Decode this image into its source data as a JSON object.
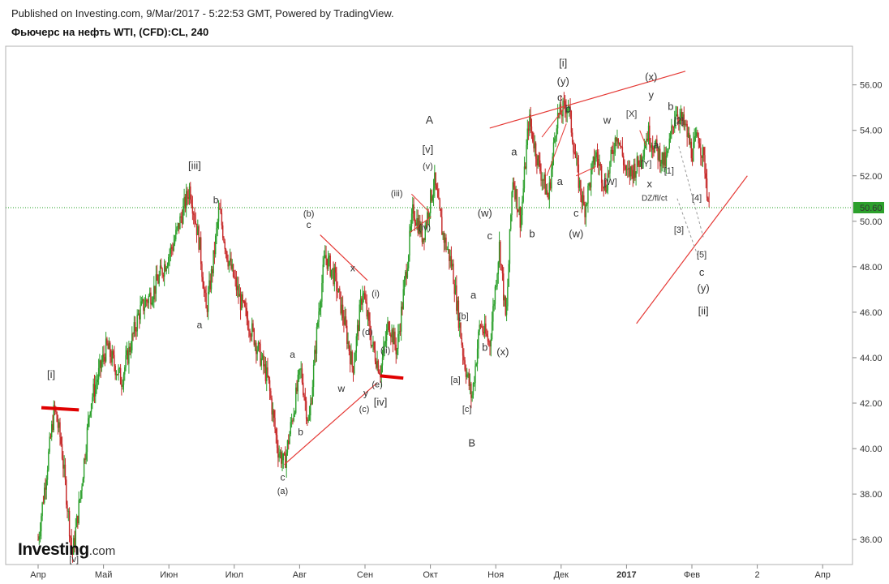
{
  "header": {
    "published": "Published on Investing.com, 9/Mar/2017 - 5:22:53 GMT, Powered by TradingView.",
    "title": "Фьючерс на нефть WTI, (CFD):CL, 240"
  },
  "logo": {
    "main": "Investing",
    "domain": ".com"
  },
  "colors": {
    "up": "#2ca02c",
    "down": "#c62828",
    "trendline": "#e53935",
    "price_line": "#1e9e1e",
    "price_label_bg": "#2ca02c"
  },
  "chart_data": {
    "type": "candlestick",
    "y_axis": {
      "range": [
        34.9,
        57.7
      ],
      "ticks": [
        "36.00",
        "38.00",
        "40.00",
        "42.00",
        "44.00",
        "46.00",
        "48.00",
        "50.00",
        "52.00",
        "54.00",
        "56.00"
      ]
    },
    "x_axis": {
      "ticks": [
        {
          "label": "Апр",
          "bold": false
        },
        {
          "label": "Май",
          "bold": false
        },
        {
          "label": "Июн",
          "bold": false
        },
        {
          "label": "Июл",
          "bold": false
        },
        {
          "label": "Авг",
          "bold": false
        },
        {
          "label": "Сен",
          "bold": false
        },
        {
          "label": "Окт",
          "bold": false
        },
        {
          "label": "Ноя",
          "bold": false
        },
        {
          "label": "Дек",
          "bold": false
        },
        {
          "label": "2017",
          "bold": true
        },
        {
          "label": "Фев",
          "bold": false
        },
        {
          "label": "2",
          "bold": false
        },
        {
          "label": "Апр",
          "bold": false
        }
      ]
    },
    "last_price": "50.60",
    "price_path": [
      [
        0.0,
        36.0
      ],
      [
        1.0,
        41.8
      ],
      [
        1.4,
        40.3
      ],
      [
        2.1,
        35.3
      ],
      [
        2.6,
        38.0
      ],
      [
        3.2,
        42.0
      ],
      [
        4.2,
        44.5
      ],
      [
        5.1,
        43.0
      ],
      [
        6.2,
        46.0
      ],
      [
        7.1,
        47.0
      ],
      [
        8.3,
        49.0
      ],
      [
        9.3,
        51.5
      ],
      [
        9.9,
        49.0
      ],
      [
        10.3,
        46.0
      ],
      [
        10.7,
        48.0
      ],
      [
        11.1,
        50.5
      ],
      [
        11.6,
        48.5
      ],
      [
        12.4,
        46.5
      ],
      [
        13.2,
        45.0
      ],
      [
        14.1,
        43.0
      ],
      [
        14.7,
        40.0
      ],
      [
        15.1,
        39.3
      ],
      [
        16.1,
        43.5
      ],
      [
        16.6,
        41.0
      ],
      [
        17.2,
        46.0
      ],
      [
        17.6,
        48.5
      ],
      [
        18.2,
        47.5
      ],
      [
        18.8,
        45.5
      ],
      [
        19.3,
        43.5
      ],
      [
        19.9,
        47.0
      ],
      [
        20.5,
        44.5
      ],
      [
        21.0,
        43.4
      ],
      [
        21.5,
        45.6
      ],
      [
        22.0,
        44.3
      ],
      [
        22.6,
        48.0
      ],
      [
        23.0,
        50.5
      ],
      [
        23.6,
        49.3
      ],
      [
        24.3,
        51.8
      ],
      [
        24.8,
        49.5
      ],
      [
        25.4,
        48.0
      ],
      [
        26.1,
        44.0
      ],
      [
        26.6,
        42.2
      ],
      [
        27.1,
        45.5
      ],
      [
        27.7,
        44.6
      ],
      [
        28.3,
        49.0
      ],
      [
        28.7,
        45.5
      ],
      [
        29.1,
        52.0
      ],
      [
        29.6,
        50.0
      ],
      [
        30.1,
        54.5
      ],
      [
        30.7,
        52.5
      ],
      [
        31.3,
        51.0
      ],
      [
        31.8,
        54.5
      ],
      [
        32.5,
        55.2
      ],
      [
        33.1,
        52.0
      ],
      [
        33.5,
        50.5
      ],
      [
        34.2,
        53.0
      ],
      [
        34.8,
        51.5
      ],
      [
        35.5,
        54.0
      ],
      [
        36.1,
        52.0
      ],
      [
        36.8,
        52.5
      ],
      [
        37.4,
        53.9
      ],
      [
        38.0,
        53.0
      ],
      [
        38.5,
        52.5
      ],
      [
        39.1,
        54.9
      ],
      [
        39.7,
        54.1
      ],
      [
        40.1,
        53.0
      ],
      [
        40.5,
        53.8
      ],
      [
        40.9,
        52.4
      ],
      [
        41.2,
        50.1
      ]
    ],
    "labels": [
      {
        "text": "[i]",
        "x": 0.8,
        "y": 43.1,
        "size": 13
      },
      {
        "text": "[iii]",
        "x": 9.6,
        "y": 52.3,
        "size": 13
      },
      {
        "text": "b",
        "x": 10.9,
        "y": 50.8,
        "size": 12
      },
      {
        "text": "a",
        "x": 9.9,
        "y": 45.3,
        "size": 12
      },
      {
        "text": "(b)",
        "x": 16.6,
        "y": 50.2,
        "size": 11
      },
      {
        "text": "c",
        "x": 16.6,
        "y": 49.7,
        "size": 12
      },
      {
        "text": "a",
        "x": 15.6,
        "y": 44.0,
        "size": 12
      },
      {
        "text": "b",
        "x": 16.1,
        "y": 40.6,
        "size": 12
      },
      {
        "text": "c",
        "x": 15.0,
        "y": 38.6,
        "size": 12
      },
      {
        "text": "(a)",
        "x": 15.0,
        "y": 38.0,
        "size": 11
      },
      {
        "text": "x",
        "x": 19.3,
        "y": 47.8,
        "size": 12
      },
      {
        "text": "w",
        "x": 18.6,
        "y": 42.5,
        "size": 12
      },
      {
        "text": "(d)",
        "x": 20.2,
        "y": 45.0,
        "size": 11
      },
      {
        "text": "y",
        "x": 20.1,
        "y": 42.3,
        "size": 12
      },
      {
        "text": "(c)",
        "x": 20.0,
        "y": 41.6,
        "size": 11
      },
      {
        "text": "(e)",
        "x": 20.8,
        "y": 42.7,
        "size": 11
      },
      {
        "text": "[iv]",
        "x": 21.0,
        "y": 41.9,
        "size": 13
      },
      {
        "text": "(i)",
        "x": 20.7,
        "y": 46.7,
        "size": 11
      },
      {
        "text": "(ii)",
        "x": 21.3,
        "y": 44.2,
        "size": 11
      },
      {
        "text": "(iii)",
        "x": 22.0,
        "y": 51.1,
        "size": 11
      },
      {
        "text": "(iv)",
        "x": 23.7,
        "y": 49.6,
        "size": 11
      },
      {
        "text": "(v)",
        "x": 23.9,
        "y": 52.3,
        "size": 11
      },
      {
        "text": "[v]",
        "x": 23.9,
        "y": 53.0,
        "size": 13
      },
      {
        "text": "A",
        "x": 24.0,
        "y": 54.3,
        "size": 14
      },
      {
        "text": "[b]",
        "x": 26.1,
        "y": 45.7,
        "size": 11
      },
      {
        "text": "a",
        "x": 26.7,
        "y": 46.6,
        "size": 13
      },
      {
        "text": "b",
        "x": 27.4,
        "y": 44.3,
        "size": 13
      },
      {
        "text": "[a]",
        "x": 25.6,
        "y": 42.9,
        "size": 11
      },
      {
        "text": "[c]",
        "x": 26.3,
        "y": 41.6,
        "size": 11
      },
      {
        "text": "B",
        "x": 26.6,
        "y": 40.1,
        "size": 13
      },
      {
        "text": "(w)",
        "x": 27.4,
        "y": 50.2,
        "size": 13
      },
      {
        "text": "c",
        "x": 27.7,
        "y": 49.2,
        "size": 13
      },
      {
        "text": "(x)",
        "x": 28.5,
        "y": 44.1,
        "size": 13
      },
      {
        "text": "a",
        "x": 29.2,
        "y": 52.9,
        "size": 13
      },
      {
        "text": "b",
        "x": 30.3,
        "y": 49.3,
        "size": 13
      },
      {
        "text": "[i]",
        "x": 32.2,
        "y": 56.8,
        "size": 13
      },
      {
        "text": "(y)",
        "x": 32.2,
        "y": 56.0,
        "size": 13
      },
      {
        "text": "c",
        "x": 32.0,
        "y": 55.3,
        "size": 13
      },
      {
        "text": "b",
        "x": 32.5,
        "y": 54.8,
        "size": 13
      },
      {
        "text": "a",
        "x": 32.0,
        "y": 51.6,
        "size": 13
      },
      {
        "text": "c",
        "x": 33.0,
        "y": 50.2,
        "size": 13
      },
      {
        "text": "(w)",
        "x": 33.0,
        "y": 49.3,
        "size": 13
      },
      {
        "text": "w",
        "x": 34.9,
        "y": 54.3,
        "size": 13
      },
      {
        "text": "[W]",
        "x": 35.1,
        "y": 51.6,
        "size": 11
      },
      {
        "text": "[X]",
        "x": 36.4,
        "y": 54.6,
        "size": 11
      },
      {
        "text": "(x)",
        "x": 37.6,
        "y": 56.2,
        "size": 13
      },
      {
        "text": "y",
        "x": 37.6,
        "y": 55.4,
        "size": 13
      },
      {
        "text": "b",
        "x": 38.8,
        "y": 54.9,
        "size": 13
      },
      {
        "text": "[2]",
        "x": 39.3,
        "y": 54.3,
        "size": 11
      },
      {
        "text": "a",
        "x": 37.9,
        "y": 53.2,
        "size": 13
      },
      {
        "text": "[Y]",
        "x": 37.3,
        "y": 52.4,
        "size": 11
      },
      {
        "text": "x",
        "x": 37.5,
        "y": 51.5,
        "size": 13
      },
      {
        "text": "[1]",
        "x": 38.7,
        "y": 52.1,
        "size": 11
      },
      {
        "text": "DZ/fl/ct",
        "x": 37.8,
        "y": 50.9,
        "size": 10
      },
      {
        "text": "[4]",
        "x": 40.4,
        "y": 50.9,
        "size": 11
      },
      {
        "text": "[3]",
        "x": 39.3,
        "y": 49.5,
        "size": 11
      },
      {
        "text": "[5]",
        "x": 40.7,
        "y": 48.4,
        "size": 11
      },
      {
        "text": "c",
        "x": 40.7,
        "y": 47.6,
        "size": 13
      },
      {
        "text": "(y)",
        "x": 40.8,
        "y": 46.9,
        "size": 13
      },
      {
        "text": "[ii]",
        "x": 40.8,
        "y": 45.9,
        "size": 13
      },
      {
        "text": "[v]",
        "x": 2.2,
        "y": 35.0,
        "size": 11
      }
    ],
    "trendlines": [
      {
        "from": [
          15.1,
          39.3
        ],
        "to": [
          20.8,
          42.9
        ],
        "width": 1.2
      },
      {
        "from": [
          17.3,
          49.4
        ],
        "to": [
          20.2,
          47.4
        ],
        "width": 1.2
      },
      {
        "from": [
          22.8,
          49.5
        ],
        "to": [
          24.1,
          50.2
        ],
        "width": 1.0
      },
      {
        "from": [
          22.9,
          51.2
        ],
        "to": [
          24.0,
          50.4
        ],
        "width": 1.0
      },
      {
        "from": [
          27.7,
          54.1
        ],
        "to": [
          39.7,
          56.6
        ],
        "width": 1.2
      },
      {
        "from": [
          36.7,
          45.5
        ],
        "to": [
          43.5,
          52.0
        ],
        "width": 1.2
      },
      {
        "from": [
          30.9,
          53.7
        ],
        "to": [
          32.4,
          55.1
        ],
        "width": 1.0
      },
      {
        "from": [
          31.2,
          52.0
        ],
        "to": [
          32.4,
          54.3
        ],
        "width": 1.0
      },
      {
        "from": [
          33.0,
          52.0
        ],
        "to": [
          34.2,
          52.4
        ],
        "width": 1.0
      },
      {
        "from": [
          36.9,
          54.0
        ],
        "to": [
          37.3,
          53.3
        ],
        "width": 1.0
      }
    ],
    "thick_bars": [
      {
        "from": [
          0.2,
          41.8
        ],
        "to": [
          2.5,
          41.7
        ],
        "width": 4
      },
      {
        "from": [
          21.0,
          43.2
        ],
        "to": [
          22.4,
          43.1
        ],
        "width": 4
      }
    ],
    "projections": [
      {
        "from": [
          39.3,
          53.3
        ],
        "to": [
          40.8,
          49.3
        ]
      },
      {
        "from": [
          39.2,
          51.0
        ],
        "to": [
          40.5,
          48.4
        ]
      }
    ]
  }
}
